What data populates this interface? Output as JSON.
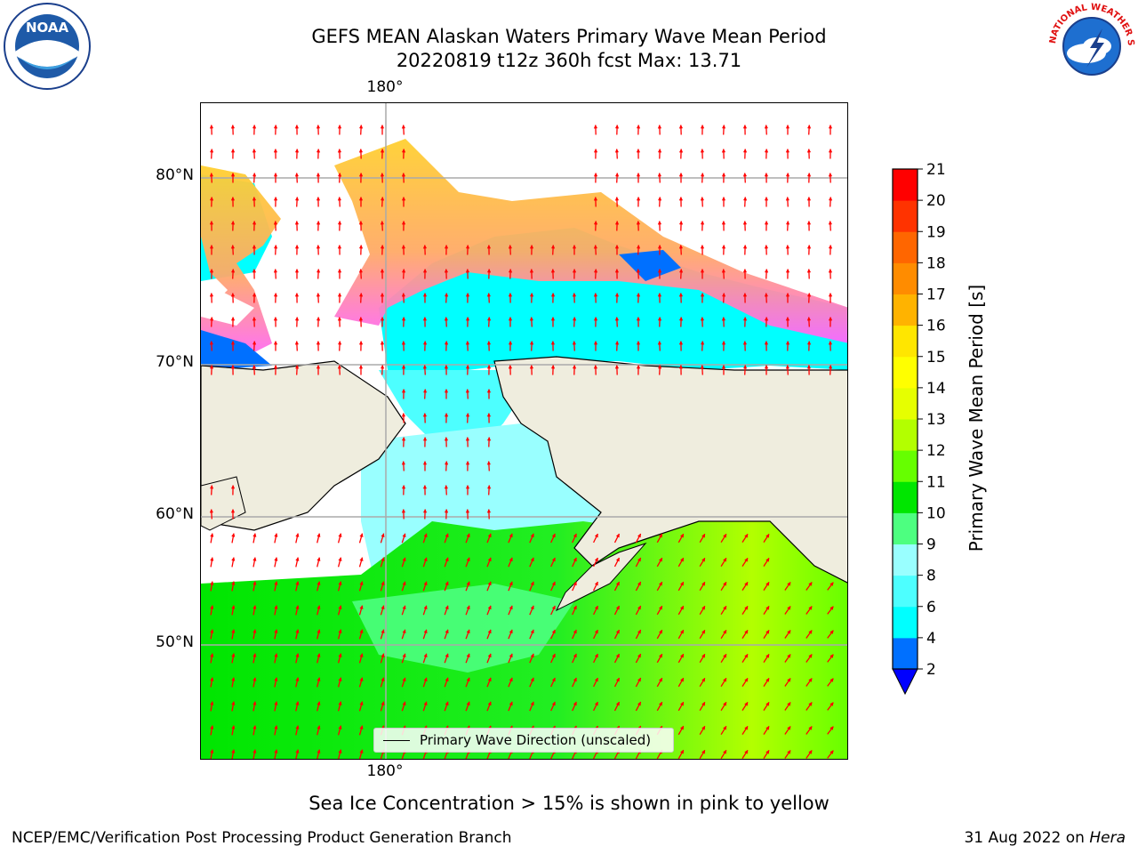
{
  "header": {
    "title_line1": "GEFS MEAN Alaskan Waters Primary Wave Mean Period",
    "title_line2": "20220819 t12z 360h fcst   Max: 13.71"
  },
  "logos": {
    "noaa_text": "NOAA",
    "nws_text": "NATIONAL WEATHER SERVICE"
  },
  "map": {
    "longitude_label_top": "180°",
    "longitude_label_bottom": "180°",
    "latitude_labels": [
      "80°N",
      "70°N",
      "60°N",
      "50°N"
    ],
    "legend_label": "Primary Wave Direction (unscaled)",
    "arrow_color": "#ff0000",
    "land_color": "#efedde",
    "ice_colors": [
      "#ff66ff",
      "#ffaa66",
      "#ffd030"
    ]
  },
  "colorbar": {
    "label": "Primary Wave Mean Period [s]",
    "ticks": [
      "2",
      "4",
      "6",
      "8",
      "9",
      "10",
      "11",
      "12",
      "13",
      "14",
      "15",
      "16",
      "17",
      "18",
      "19",
      "20",
      "21"
    ],
    "colors": [
      "#0070ff",
      "#00ffff",
      "#4dffff",
      "#99ffff",
      "#4dff80",
      "#00e600",
      "#66ff00",
      "#b3ff00",
      "#e6ff00",
      "#ffff00",
      "#ffe600",
      "#ffb300",
      "#ff8c00",
      "#ff6600",
      "#ff3300",
      "#ff0000"
    ],
    "under_color": "#0000ff"
  },
  "subtitle": "Sea Ice Concentration > 15% is shown in pink to yellow",
  "footer": {
    "left": "NCEP/EMC/Verification Post Processing Product Generation Branch",
    "right_prefix": "31 Aug 2022 on ",
    "right_host": "Hera"
  }
}
